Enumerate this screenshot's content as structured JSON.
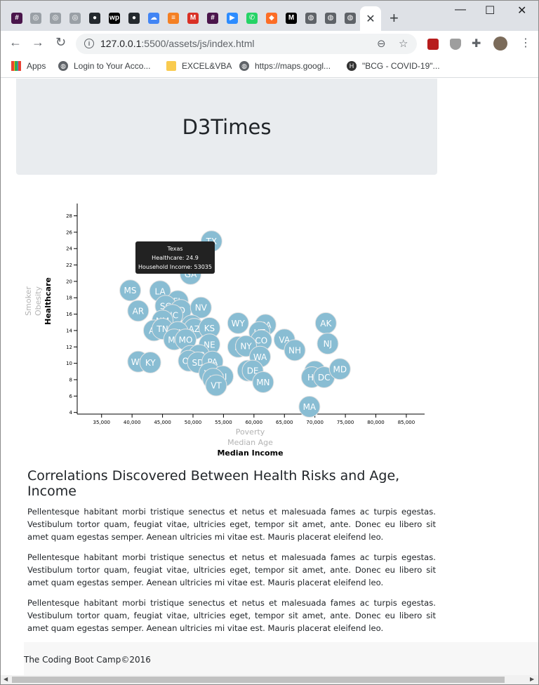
{
  "browser": {
    "tabs": [
      {
        "icon": "slack-icon",
        "glyph": "#",
        "color": "#4a154b"
      },
      {
        "icon": "generic-circle-icon",
        "glyph": "◎",
        "color": "#9aa0a6"
      },
      {
        "icon": "generic-circle-icon",
        "glyph": "◎",
        "color": "#9aa0a6"
      },
      {
        "icon": "generic-circle-icon",
        "glyph": "◎",
        "color": "#9aa0a6"
      },
      {
        "icon": "github-icon",
        "glyph": "●",
        "color": "#24292e"
      },
      {
        "icon": "wp-icon",
        "glyph": "wp",
        "color": "#000000"
      },
      {
        "icon": "github-icon",
        "glyph": "●",
        "color": "#24292e"
      },
      {
        "icon": "cloud-icon",
        "glyph": "☁",
        "color": "#4285f4"
      },
      {
        "icon": "stackoverflow-icon",
        "glyph": "≡",
        "color": "#f48024"
      },
      {
        "icon": "gmail-icon",
        "glyph": "M",
        "color": "#d93025"
      },
      {
        "icon": "slack-icon",
        "glyph": "#",
        "color": "#4a154b"
      },
      {
        "icon": "zoom-icon",
        "glyph": "▶",
        "color": "#2d8cff"
      },
      {
        "icon": "whatsapp-icon",
        "glyph": "✆",
        "color": "#25d366"
      },
      {
        "icon": "gitlab-icon",
        "glyph": "◆",
        "color": "#fc6d26"
      },
      {
        "icon": "medium-icon",
        "glyph": "M",
        "color": "#000000"
      },
      {
        "icon": "globe-icon",
        "glyph": "◍",
        "color": "#5f6368"
      },
      {
        "icon": "globe-icon",
        "glyph": "◍",
        "color": "#5f6368"
      },
      {
        "icon": "globe-icon",
        "glyph": "◍",
        "color": "#5f6368"
      }
    ],
    "active_tab_close": "✕",
    "new_tab": "+",
    "window_controls": {
      "minimize": "—",
      "maximize": "☐",
      "close": "✕"
    },
    "url_host": "127.0.0.1",
    "url_rest": ":5500/assets/js/index.html",
    "bookmarks": [
      {
        "label": "Apps",
        "icon": "apps-grid-icon"
      },
      {
        "label": "Login to Your Acco...",
        "icon": "globe-icon"
      },
      {
        "label": "EXCEL&VBA",
        "icon": "folder-icon"
      },
      {
        "label": "https://maps.googl...",
        "icon": "globe-icon"
      },
      {
        "label": "\"BCG - COVID-19\"...",
        "icon": "h-logo-icon"
      }
    ]
  },
  "page": {
    "title": "D3Times",
    "article_heading": "Correlations Discovered Between Health Risks and Age, Income",
    "paragraphs": [
      "Pellentesque habitant morbi tristique senectus et netus et malesuada fames ac turpis egestas. Vestibulum tortor quam, feugiat vitae, ultricies eget, tempor sit amet, ante. Donec eu libero sit amet quam egestas semper. Aenean ultricies mi vitae est. Mauris placerat eleifend leo.",
      "Pellentesque habitant morbi tristique senectus et netus et malesuada fames ac turpis egestas. Vestibulum tortor quam, feugiat vitae, ultricies eget, tempor sit amet, ante. Donec eu libero sit amet quam egestas semper. Aenean ultricies mi vitae est. Mauris placerat eleifend leo.",
      "Pellentesque habitant morbi tristique senectus et netus et malesuada fames ac turpis egestas. Vestibulum tortor quam, feugiat vitae, ultricies eget, tempor sit amet, ante. Donec eu libero sit amet quam egestas semper. Aenean ultricies mi vitae est. Mauris placerat eleifend leo."
    ],
    "footer": "The Coding Boot Camp©2016"
  },
  "tooltip": {
    "state": "Texas",
    "line1": "Healthcare: 24.9",
    "line2": "Household Income: 53035"
  },
  "chart_data": {
    "type": "scatter",
    "x_axis_labels": [
      {
        "label": "Poverty",
        "active": false
      },
      {
        "label": "Median Age",
        "active": false
      },
      {
        "label": "Median Income",
        "active": true
      }
    ],
    "y_axis_labels": [
      {
        "label": "Smoker",
        "active": false
      },
      {
        "label": "Obesity",
        "active": false
      },
      {
        "label": "Healthcare",
        "active": true
      }
    ],
    "xlim": [
      31000,
      88000
    ],
    "ylim": [
      3.8,
      29.5
    ],
    "x_ticks": [
      35000,
      40000,
      45000,
      50000,
      55000,
      60000,
      65000,
      70000,
      75000,
      80000,
      85000
    ],
    "x_tick_labels": [
      "35,000",
      "40,000",
      "45,000",
      "50,000",
      "55,000",
      "60,000",
      "65,000",
      "70,000",
      "75,000",
      "80,000",
      "85,000"
    ],
    "y_ticks": [
      4,
      6,
      8,
      10,
      12,
      14,
      16,
      18,
      20,
      22,
      24,
      26,
      28
    ],
    "marker_color": "#89bdd3",
    "points": [
      {
        "abbr": "TX",
        "x": 53035,
        "y": 24.9
      },
      {
        "abbr": "GA",
        "x": 49600,
        "y": 20.9
      },
      {
        "abbr": "MS",
        "x": 39700,
        "y": 18.9
      },
      {
        "abbr": "LA",
        "x": 44600,
        "y": 18.8
      },
      {
        "abbr": "FL",
        "x": 47500,
        "y": 17.6
      },
      {
        "abbr": "SC",
        "x": 45500,
        "y": 17.0
      },
      {
        "abbr": "ID",
        "x": 48000,
        "y": 16.5
      },
      {
        "abbr": "NV",
        "x": 51300,
        "y": 16.8
      },
      {
        "abbr": "AR",
        "x": 41000,
        "y": 16.4
      },
      {
        "abbr": "NC",
        "x": 46600,
        "y": 15.9
      },
      {
        "abbr": "NM",
        "x": 45000,
        "y": 15.2
      },
      {
        "abbr": "IN",
        "x": 49800,
        "y": 14.6
      },
      {
        "abbr": "AZ",
        "x": 50200,
        "y": 14.2
      },
      {
        "abbr": "KS",
        "x": 52700,
        "y": 14.3
      },
      {
        "abbr": "AL",
        "x": 43600,
        "y": 14.0
      },
      {
        "abbr": "TN",
        "x": 45000,
        "y": 14.2
      },
      {
        "abbr": "OK",
        "x": 47500,
        "y": 13.8
      },
      {
        "abbr": "MT",
        "x": 46900,
        "y": 12.9
      },
      {
        "abbr": "MO",
        "x": 48800,
        "y": 12.9
      },
      {
        "abbr": "WY",
        "x": 57400,
        "y": 14.9
      },
      {
        "abbr": "CA",
        "x": 61900,
        "y": 14.7
      },
      {
        "abbr": "UT",
        "x": 60900,
        "y": 13.8
      },
      {
        "abbr": "CO",
        "x": 61200,
        "y": 12.8
      },
      {
        "abbr": "VA",
        "x": 65000,
        "y": 12.9
      },
      {
        "abbr": "AK",
        "x": 71800,
        "y": 14.9
      },
      {
        "abbr": "NJ",
        "x": 72100,
        "y": 12.4
      },
      {
        "abbr": "NE",
        "x": 52700,
        "y": 12.3
      },
      {
        "abbr": "IL",
        "x": 57400,
        "y": 12.0
      },
      {
        "abbr": "NY",
        "x": 58700,
        "y": 12.1
      },
      {
        "abbr": "NH",
        "x": 66700,
        "y": 11.6
      },
      {
        "abbr": "WA",
        "x": 61000,
        "y": 10.8
      },
      {
        "abbr": "WV",
        "x": 41000,
        "y": 10.2
      },
      {
        "abbr": "KY",
        "x": 43000,
        "y": 10.1
      },
      {
        "abbr": "MI",
        "x": 49600,
        "y": 10.9
      },
      {
        "abbr": "OR",
        "x": 51000,
        "y": 11.0
      },
      {
        "abbr": "OH",
        "x": 49300,
        "y": 10.3
      },
      {
        "abbr": "SD",
        "x": 50800,
        "y": 10.1
      },
      {
        "abbr": "PA",
        "x": 53200,
        "y": 10.2
      },
      {
        "abbr": "ND",
        "x": 59000,
        "y": 9.1
      },
      {
        "abbr": "DE",
        "x": 59800,
        "y": 9.1
      },
      {
        "abbr": "WI",
        "x": 52700,
        "y": 8.8
      },
      {
        "abbr": "RI",
        "x": 54900,
        "y": 8.4
      },
      {
        "abbr": "IA",
        "x": 53300,
        "y": 8.1
      },
      {
        "abbr": "MN",
        "x": 61500,
        "y": 7.7
      },
      {
        "abbr": "VT",
        "x": 53800,
        "y": 7.3
      },
      {
        "abbr": "CT",
        "x": 70000,
        "y": 9.0
      },
      {
        "abbr": "HI",
        "x": 69500,
        "y": 8.3
      },
      {
        "abbr": "DC",
        "x": 71500,
        "y": 8.3
      },
      {
        "abbr": "MD",
        "x": 74100,
        "y": 9.3
      },
      {
        "abbr": "MA",
        "x": 69100,
        "y": 4.7
      }
    ]
  }
}
